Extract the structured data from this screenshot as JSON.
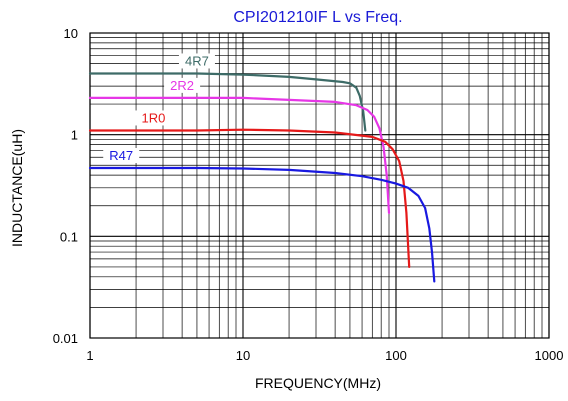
{
  "chart_data": {
    "type": "line",
    "title": "CPI201210IF L vs Freq.",
    "xlabel": "FREQUENCY(MHz)",
    "ylabel": "INDUCTANCE(uH)",
    "xscale": "log",
    "yscale": "log",
    "xlim": [
      1,
      1000
    ],
    "ylim": [
      0.01,
      10
    ],
    "grid": true,
    "legend": "inline labels",
    "x_ticks": [
      "1",
      "10",
      "100",
      "1000"
    ],
    "y_ticks": [
      "0.01",
      "0.1",
      "1",
      "10"
    ],
    "colors": {
      "title": "#1a1ad6",
      "grid": "#000000"
    },
    "series": [
      {
        "name": "4R7",
        "color": "#3d6b67",
        "label_color": "#3d6b67",
        "points": [
          [
            1,
            4.0
          ],
          [
            5,
            4.0
          ],
          [
            10,
            3.9
          ],
          [
            20,
            3.7
          ],
          [
            30,
            3.5
          ],
          [
            45,
            3.3
          ],
          [
            50,
            3.2
          ],
          [
            55,
            2.9
          ],
          [
            58,
            2.4
          ],
          [
            61,
            1.7
          ],
          [
            63,
            1.1
          ]
        ]
      },
      {
        "name": "2R2",
        "color": "#e636e6",
        "label_color": "#e636e6",
        "points": [
          [
            1,
            2.3
          ],
          [
            5,
            2.3
          ],
          [
            10,
            2.3
          ],
          [
            20,
            2.2
          ],
          [
            40,
            2.1
          ],
          [
            55,
            1.95
          ],
          [
            65,
            1.75
          ],
          [
            72,
            1.5
          ],
          [
            78,
            1.15
          ],
          [
            83,
            0.75
          ],
          [
            87,
            0.4
          ],
          [
            90,
            0.17
          ]
        ]
      },
      {
        "name": "1R0",
        "color": "#e51919",
        "label_color": "#e51919",
        "points": [
          [
            1,
            1.1
          ],
          [
            5,
            1.1
          ],
          [
            10,
            1.12
          ],
          [
            20,
            1.1
          ],
          [
            40,
            1.05
          ],
          [
            70,
            0.95
          ],
          [
            85,
            0.85
          ],
          [
            95,
            0.72
          ],
          [
            105,
            0.55
          ],
          [
            112,
            0.35
          ],
          [
            117,
            0.17
          ],
          [
            122,
            0.05
          ]
        ]
      },
      {
        "name": "R47",
        "color": "#1919e0",
        "label_color": "#1919e0",
        "points": [
          [
            1,
            0.47
          ],
          [
            5,
            0.47
          ],
          [
            10,
            0.465
          ],
          [
            20,
            0.45
          ],
          [
            40,
            0.42
          ],
          [
            60,
            0.39
          ],
          [
            80,
            0.36
          ],
          [
            100,
            0.33
          ],
          [
            120,
            0.3
          ],
          [
            140,
            0.25
          ],
          [
            155,
            0.19
          ],
          [
            165,
            0.12
          ],
          [
            172,
            0.07
          ],
          [
            178,
            0.036
          ]
        ]
      }
    ]
  }
}
